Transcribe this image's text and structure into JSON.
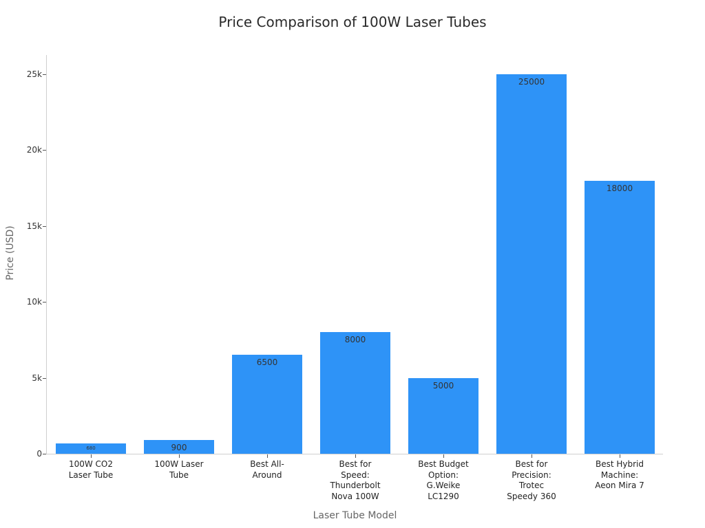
{
  "chart_data": {
    "type": "bar",
    "title": "Price Comparison of 100W Laser Tubes",
    "xlabel": "Laser Tube Model",
    "ylabel": "Price (USD)",
    "ylim": [
      0,
      26300
    ],
    "yticks": [
      0,
      5000,
      10000,
      15000,
      20000,
      25000
    ],
    "ytick_labels": [
      "0",
      "5k",
      "10k",
      "15k",
      "20k",
      "25k"
    ],
    "categories": [
      "100W CO2\nLaser Tube",
      "100W Laser\nTube",
      "Best All-\nAround",
      "Best for\nSpeed:\nThunderbolt\nNova 100W",
      "Best Budget\nOption:\nG.Weike\nLC1290",
      "Best for\nPrecision:\nTrotec\nSpeedy 360",
      "Best Hybrid\nMachine:\nAeon Mira 7"
    ],
    "values": [
      680,
      900,
      6500,
      8000,
      5000,
      25000,
      18000
    ],
    "value_labels": [
      "680",
      "900",
      "6500",
      "8000",
      "5000",
      "25000",
      "18000"
    ],
    "bar_color": "#2e93f7",
    "grid": false,
    "legend": null
  }
}
